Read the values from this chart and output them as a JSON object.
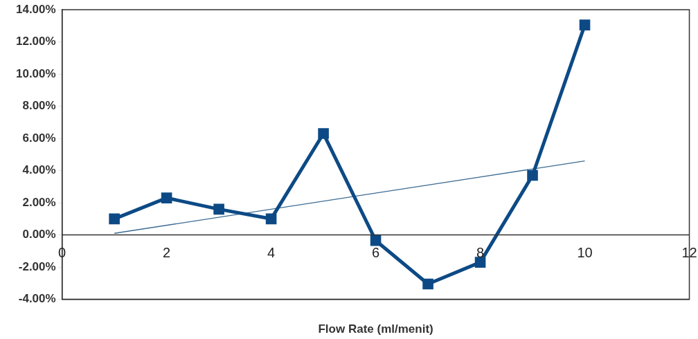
{
  "chart_data": {
    "type": "line",
    "xlabel": "Flow Rate (ml/menit)",
    "x": [
      1,
      2,
      3,
      4,
      5,
      6,
      7,
      8,
      9,
      10
    ],
    "series": [
      {
        "color": "#0d4a85",
        "values": [
          1.0,
          2.3,
          1.6,
          1.0,
          6.3,
          -0.35,
          -3.05,
          -1.7,
          3.7,
          13.05
        ],
        "marker": "square"
      },
      {
        "type": "line",
        "color": "#3a6a92",
        "x": [
          1,
          10
        ],
        "values": [
          0.1,
          4.6
        ],
        "marker": "none"
      }
    ],
    "xlim": [
      0,
      12
    ],
    "xticks": [
      0,
      2,
      4,
      6,
      8,
      10,
      12
    ],
    "ylim": [
      -4,
      14
    ],
    "yticks": [
      {
        "value": -4,
        "label": "-4.00%"
      },
      {
        "value": -2,
        "label": "-2.00%"
      },
      {
        "value": 0,
        "label": "0.00%"
      },
      {
        "value": 2,
        "label": "2.00%"
      },
      {
        "value": 4,
        "label": "4.00%"
      },
      {
        "value": 6,
        "label": "6.00%"
      },
      {
        "value": 8,
        "label": "8.00%"
      },
      {
        "value": 10,
        "label": "10.00%"
      },
      {
        "value": 12,
        "label": "12.00%"
      },
      {
        "value": 14,
        "label": "14.00%"
      }
    ],
    "grid": false,
    "legend": false
  }
}
